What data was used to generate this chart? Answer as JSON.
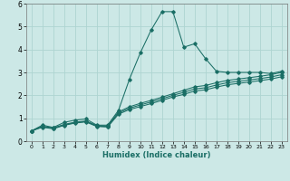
{
  "xlabel": "Humidex (Indice chaleur)",
  "xlim": [
    -0.5,
    23.5
  ],
  "ylim": [
    0,
    6
  ],
  "xticks": [
    0,
    1,
    2,
    3,
    4,
    5,
    6,
    7,
    8,
    9,
    10,
    11,
    12,
    13,
    14,
    15,
    16,
    17,
    18,
    19,
    20,
    21,
    22,
    23
  ],
  "yticks": [
    0,
    1,
    2,
    3,
    4,
    5,
    6
  ],
  "background_color": "#cce8e6",
  "grid_color": "#aed4d1",
  "line_color": "#1a6e65",
  "series": [
    {
      "x": [
        0,
        1,
        2,
        3,
        4,
        5,
        6,
        7,
        8,
        9,
        10,
        11,
        12,
        13,
        14,
        15,
        16,
        17,
        18,
        19,
        20,
        21,
        22,
        23
      ],
      "y": [
        0.45,
        0.7,
        0.6,
        0.82,
        0.92,
        0.97,
        0.7,
        0.7,
        1.35,
        2.7,
        3.85,
        4.85,
        5.65,
        5.65,
        4.1,
        4.25,
        3.6,
        3.05,
        3.0,
        3.0,
        3.0,
        3.0,
        2.95,
        3.05
      ]
    },
    {
      "x": [
        0,
        1,
        2,
        3,
        4,
        5,
        6,
        7,
        8,
        9,
        10,
        11,
        12,
        13,
        14,
        15,
        16,
        17,
        18,
        19,
        20,
        21,
        22,
        23
      ],
      "y": [
        0.45,
        0.65,
        0.58,
        0.73,
        0.83,
        0.88,
        0.68,
        0.66,
        1.28,
        1.5,
        1.65,
        1.78,
        1.92,
        2.07,
        2.22,
        2.37,
        2.43,
        2.55,
        2.65,
        2.71,
        2.77,
        2.83,
        2.9,
        3.0
      ]
    },
    {
      "x": [
        0,
        1,
        2,
        3,
        4,
        5,
        6,
        7,
        8,
        9,
        10,
        11,
        12,
        13,
        14,
        15,
        16,
        17,
        18,
        19,
        20,
        21,
        22,
        23
      ],
      "y": [
        0.45,
        0.63,
        0.56,
        0.71,
        0.81,
        0.86,
        0.66,
        0.64,
        1.23,
        1.44,
        1.58,
        1.71,
        1.85,
        2.0,
        2.13,
        2.28,
        2.33,
        2.45,
        2.55,
        2.61,
        2.67,
        2.73,
        2.8,
        2.9
      ]
    },
    {
      "x": [
        0,
        1,
        2,
        3,
        4,
        5,
        6,
        7,
        8,
        9,
        10,
        11,
        12,
        13,
        14,
        15,
        16,
        17,
        18,
        19,
        20,
        21,
        22,
        23
      ],
      "y": [
        0.45,
        0.61,
        0.54,
        0.69,
        0.79,
        0.84,
        0.64,
        0.62,
        1.18,
        1.38,
        1.51,
        1.64,
        1.78,
        1.93,
        2.04,
        2.19,
        2.24,
        2.36,
        2.46,
        2.52,
        2.58,
        2.64,
        2.71,
        2.81
      ]
    }
  ]
}
